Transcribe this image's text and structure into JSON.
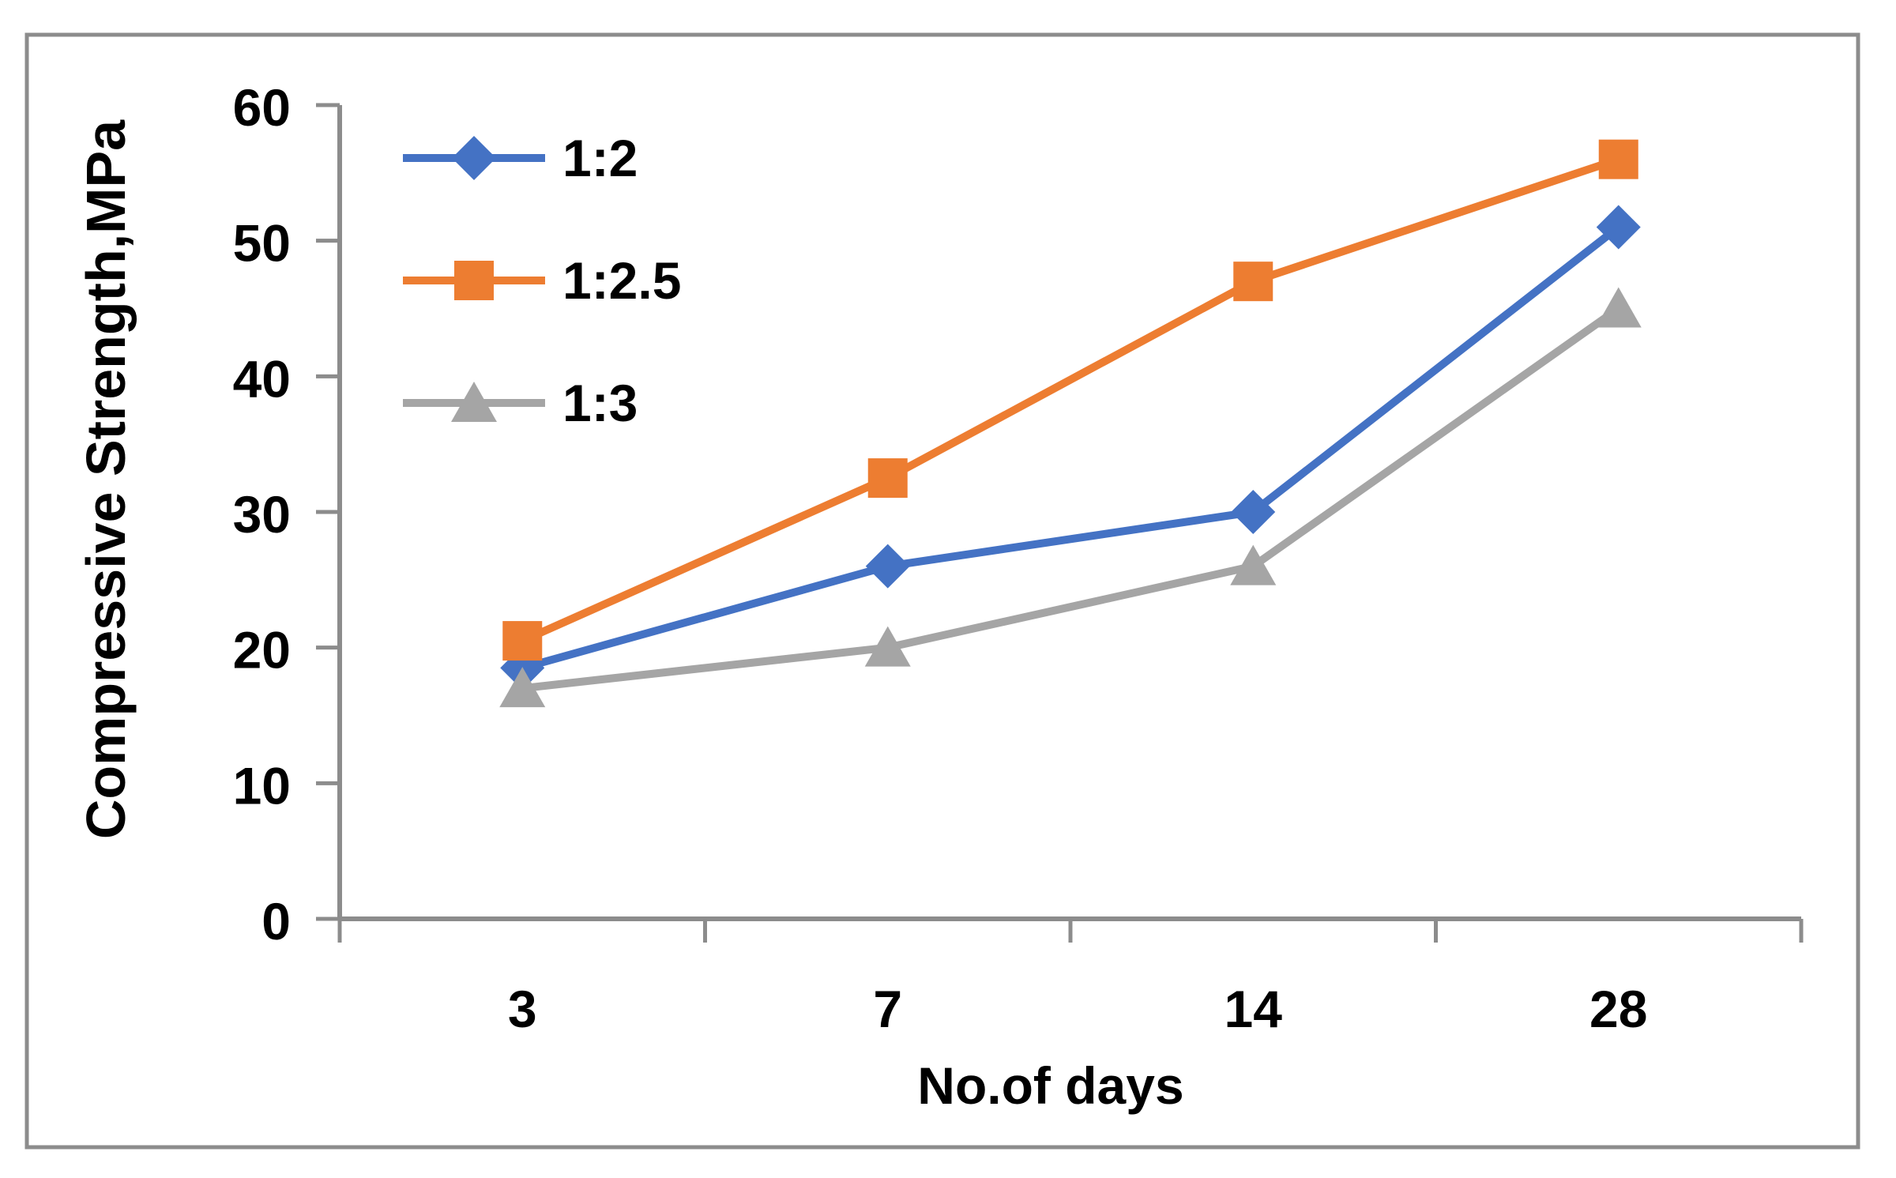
{
  "figure": {
    "background": "#FFFFFF",
    "border_color": "#8C8C8C"
  },
  "chart_data": {
    "type": "line",
    "title": "",
    "xlabel": "No.of days",
    "ylabel": "Compressive Strength,MPa",
    "categories": [
      "3",
      "7",
      "14",
      "28"
    ],
    "series": [
      {
        "name": "1:2",
        "marker": "diamond",
        "color": "#4472C4",
        "values": [
          18.5,
          26,
          30,
          51
        ]
      },
      {
        "name": "1:2.5",
        "marker": "square",
        "color": "#ED7D31",
        "values": [
          20.5,
          32.5,
          47,
          56
        ]
      },
      {
        "name": "1:3",
        "marker": "triangle",
        "color": "#A5A5A5",
        "values": [
          17,
          20,
          26,
          45
        ]
      }
    ],
    "ylim": [
      0,
      60
    ],
    "y_ticks": [
      0,
      10,
      20,
      30,
      40,
      50,
      60
    ],
    "grid": false,
    "legend_position": "upper-left-inside",
    "axis_color": "#8C8C8C",
    "text_color": "#000000"
  }
}
